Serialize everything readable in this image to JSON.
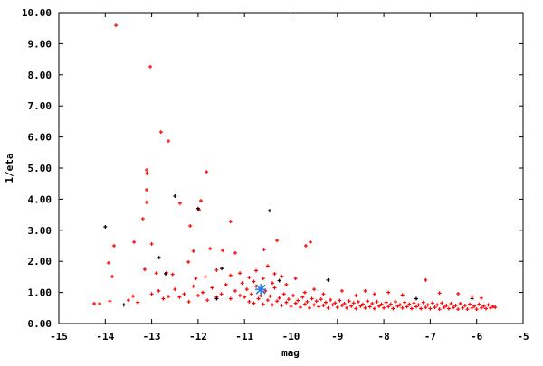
{
  "chart_data": {
    "type": "scatter",
    "title": "",
    "xlabel": "mag",
    "ylabel": "1/eta",
    "xlim": [
      -15,
      -5
    ],
    "ylim": [
      0,
      10
    ],
    "xticks": [
      "-15",
      "-14",
      "-13",
      "-12",
      "-11",
      "-10",
      "-9",
      "-8",
      "-7",
      "-6",
      "-5"
    ],
    "yticks": [
      "0.00",
      "1.00",
      "2.00",
      "3.00",
      "4.00",
      "5.00",
      "6.00",
      "7.00",
      "8.00",
      "9.00",
      "10.00"
    ],
    "grid": false,
    "legend": "none",
    "series": [
      {
        "color": "#ff0000",
        "marker": "plus",
        "points": [
          [
            -13.77,
            9.59
          ],
          [
            -13.03,
            8.26
          ],
          [
            -12.8,
            6.16
          ],
          [
            -12.64,
            5.87
          ],
          [
            -13.11,
            4.94
          ],
          [
            -13.1,
            4.83
          ],
          [
            -11.82,
            4.88
          ],
          [
            -13.11,
            4.3
          ],
          [
            -11.94,
            3.95
          ],
          [
            -11.98,
            3.66
          ],
          [
            -13.11,
            3.9
          ],
          [
            -13.19,
            3.37
          ],
          [
            -12.39,
            3.87
          ],
          [
            -12.17,
            3.14
          ],
          [
            -11.3,
            3.28
          ],
          [
            -13.81,
            2.5
          ],
          [
            -13.38,
            2.62
          ],
          [
            -13.0,
            2.56
          ],
          [
            -9.58,
            2.62
          ],
          [
            -9.68,
            2.5
          ],
          [
            -10.3,
            2.67
          ],
          [
            -13.93,
            1.95
          ],
          [
            -13.85,
            1.51
          ],
          [
            -12.1,
            2.33
          ],
          [
            -11.74,
            2.41
          ],
          [
            -11.47,
            2.35
          ],
          [
            -10.58,
            2.38
          ],
          [
            -11.2,
            2.27
          ],
          [
            -13.15,
            1.74
          ],
          [
            -12.68,
            1.63
          ],
          [
            -12.21,
            1.98
          ],
          [
            -14.24,
            0.64
          ],
          [
            -14.12,
            0.64
          ],
          [
            -12.64,
            0.87
          ],
          [
            -12.9,
            1.62
          ],
          [
            -12.55,
            1.58
          ],
          [
            -12.05,
            1.45
          ],
          [
            -11.85,
            1.5
          ],
          [
            -11.6,
            1.72
          ],
          [
            -11.3,
            1.55
          ],
          [
            -11.1,
            1.62
          ],
          [
            -10.9,
            1.48
          ],
          [
            -10.75,
            1.7
          ],
          [
            -10.5,
            1.85
          ],
          [
            -10.35,
            1.6
          ],
          [
            -10.2,
            1.52
          ],
          [
            -9.9,
            1.45
          ],
          [
            -13.5,
            0.75
          ],
          [
            -13.3,
            0.68
          ],
          [
            -13.0,
            0.95
          ],
          [
            -12.85,
            1.05
          ],
          [
            -12.75,
            0.8
          ],
          [
            -12.5,
            1.1
          ],
          [
            -12.4,
            0.85
          ],
          [
            -12.3,
            0.95
          ],
          [
            -12.2,
            0.7
          ],
          [
            -12.1,
            1.2
          ],
          [
            -12.0,
            0.9
          ],
          [
            -11.9,
            1.0
          ],
          [
            -11.8,
            0.75
          ],
          [
            -11.7,
            1.15
          ],
          [
            -11.6,
            0.85
          ],
          [
            -11.5,
            0.95
          ],
          [
            -11.4,
            1.25
          ],
          [
            -11.3,
            0.8
          ],
          [
            -11.2,
            1.05
          ],
          [
            -11.1,
            0.9
          ],
          [
            -11.05,
            1.3
          ],
          [
            -13.9,
            0.72
          ],
          [
            -13.4,
            0.88
          ],
          [
            -11.0,
            0.85
          ],
          [
            -10.95,
            1.1
          ],
          [
            -10.9,
            0.7
          ],
          [
            -10.85,
            0.95
          ],
          [
            -10.8,
            0.65
          ],
          [
            -10.75,
            1.2
          ],
          [
            -10.7,
            0.8
          ],
          [
            -10.65,
            0.9
          ],
          [
            -10.6,
            0.62
          ],
          [
            -10.55,
            1.05
          ],
          [
            -10.5,
            0.75
          ],
          [
            -10.45,
            0.88
          ],
          [
            -10.4,
            0.6
          ],
          [
            -10.35,
            1.15
          ],
          [
            -10.3,
            0.72
          ],
          [
            -10.25,
            0.82
          ],
          [
            -10.2,
            0.58
          ],
          [
            -10.15,
            0.95
          ],
          [
            -10.1,
            0.68
          ],
          [
            -10.05,
            0.78
          ],
          [
            -10.0,
            0.55
          ],
          [
            -9.95,
            0.9
          ],
          [
            -9.9,
            0.65
          ],
          [
            -9.85,
            0.74
          ],
          [
            -9.8,
            0.52
          ],
          [
            -9.75,
            0.85
          ],
          [
            -9.7,
            0.62
          ],
          [
            -9.65,
            0.7
          ],
          [
            -9.6,
            0.5
          ],
          [
            -9.55,
            0.8
          ],
          [
            -9.5,
            0.6
          ],
          [
            -9.45,
            0.72
          ],
          [
            -9.4,
            0.54
          ],
          [
            -9.35,
            0.78
          ],
          [
            -9.3,
            0.58
          ],
          [
            -9.25,
            0.68
          ],
          [
            -9.2,
            0.5
          ],
          [
            -9.15,
            0.76
          ],
          [
            -9.1,
            0.6
          ],
          [
            -9.05,
            0.66
          ],
          [
            -9.0,
            0.52
          ],
          [
            -8.95,
            0.74
          ],
          [
            -8.9,
            0.58
          ],
          [
            -8.85,
            0.64
          ],
          [
            -8.8,
            0.5
          ],
          [
            -8.75,
            0.72
          ],
          [
            -8.7,
            0.56
          ],
          [
            -8.65,
            0.66
          ],
          [
            -8.6,
            0.48
          ],
          [
            -8.55,
            0.7
          ],
          [
            -8.5,
            0.56
          ],
          [
            -8.45,
            0.62
          ],
          [
            -8.4,
            0.5
          ],
          [
            -8.35,
            0.72
          ],
          [
            -8.3,
            0.54
          ],
          [
            -8.25,
            0.64
          ],
          [
            -8.2,
            0.48
          ],
          [
            -8.15,
            0.7
          ],
          [
            -8.1,
            0.56
          ],
          [
            -8.05,
            0.62
          ],
          [
            -8.0,
            0.5
          ],
          [
            -7.95,
            0.68
          ],
          [
            -7.9,
            0.54
          ],
          [
            -7.85,
            0.62
          ],
          [
            -7.8,
            0.48
          ],
          [
            -7.75,
            0.7
          ],
          [
            -7.7,
            0.56
          ],
          [
            -7.65,
            0.6
          ],
          [
            -7.6,
            0.5
          ],
          [
            -7.55,
            0.68
          ],
          [
            -7.5,
            0.54
          ],
          [
            -7.45,
            0.62
          ],
          [
            -7.4,
            0.48
          ],
          [
            -7.35,
            0.66
          ],
          [
            -7.3,
            0.54
          ],
          [
            -7.25,
            0.6
          ],
          [
            -7.2,
            0.48
          ],
          [
            -7.15,
            0.68
          ],
          [
            -7.1,
            0.52
          ],
          [
            -7.05,
            0.6
          ],
          [
            -7.0,
            0.48
          ],
          [
            -6.95,
            0.66
          ],
          [
            -6.9,
            0.52
          ],
          [
            -6.85,
            0.6
          ],
          [
            -6.8,
            0.46
          ],
          [
            -6.75,
            0.66
          ],
          [
            -6.7,
            0.52
          ],
          [
            -6.65,
            0.58
          ],
          [
            -6.6,
            0.48
          ],
          [
            -6.55,
            0.64
          ],
          [
            -6.5,
            0.52
          ],
          [
            -6.45,
            0.58
          ],
          [
            -6.4,
            0.46
          ],
          [
            -6.35,
            0.64
          ],
          [
            -6.3,
            0.5
          ],
          [
            -6.25,
            0.58
          ],
          [
            -6.2,
            0.46
          ],
          [
            -6.15,
            0.62
          ],
          [
            -6.1,
            0.5
          ],
          [
            -6.05,
            0.56
          ],
          [
            -6.0,
            0.46
          ],
          [
            -5.95,
            0.62
          ],
          [
            -5.9,
            0.5
          ],
          [
            -5.85,
            0.56
          ],
          [
            -5.8,
            0.48
          ],
          [
            -5.75,
            0.6
          ],
          [
            -5.7,
            0.5
          ],
          [
            -5.65,
            0.55
          ],
          [
            -5.6,
            0.52
          ],
          [
            -9.7,
            1.0
          ],
          [
            -9.3,
            0.95
          ],
          [
            -8.9,
            1.05
          ],
          [
            -8.6,
            0.9
          ],
          [
            -8.2,
            0.95
          ],
          [
            -7.9,
            1.0
          ],
          [
            -7.6,
            0.92
          ],
          [
            -7.1,
            1.4
          ],
          [
            -6.8,
            0.98
          ],
          [
            -6.4,
            0.96
          ],
          [
            -6.1,
            0.88
          ],
          [
            -5.9,
            0.82
          ],
          [
            -10.8,
            1.35
          ],
          [
            -10.6,
            1.45
          ],
          [
            -10.4,
            1.3
          ],
          [
            -10.1,
            1.25
          ],
          [
            -9.5,
            1.1
          ],
          [
            -8.4,
            1.05
          ]
        ]
      },
      {
        "color": "#000000",
        "marker": "plus",
        "points": [
          [
            -12.5,
            4.1
          ],
          [
            -14.0,
            3.11
          ],
          [
            -10.46,
            3.63
          ],
          [
            -12.84,
            2.12
          ],
          [
            -11.49,
            1.77
          ],
          [
            -12.0,
            3.7
          ],
          [
            -12.7,
            1.6
          ],
          [
            -10.25,
            1.38
          ],
          [
            -9.2,
            1.4
          ],
          [
            -7.3,
            0.8
          ],
          [
            -6.1,
            0.8
          ],
          [
            -11.6,
            0.8
          ],
          [
            -13.6,
            0.6
          ]
        ]
      },
      {
        "color": "#1e7fe6",
        "marker": "star",
        "points": [
          [
            -10.65,
            1.1
          ]
        ]
      }
    ]
  }
}
